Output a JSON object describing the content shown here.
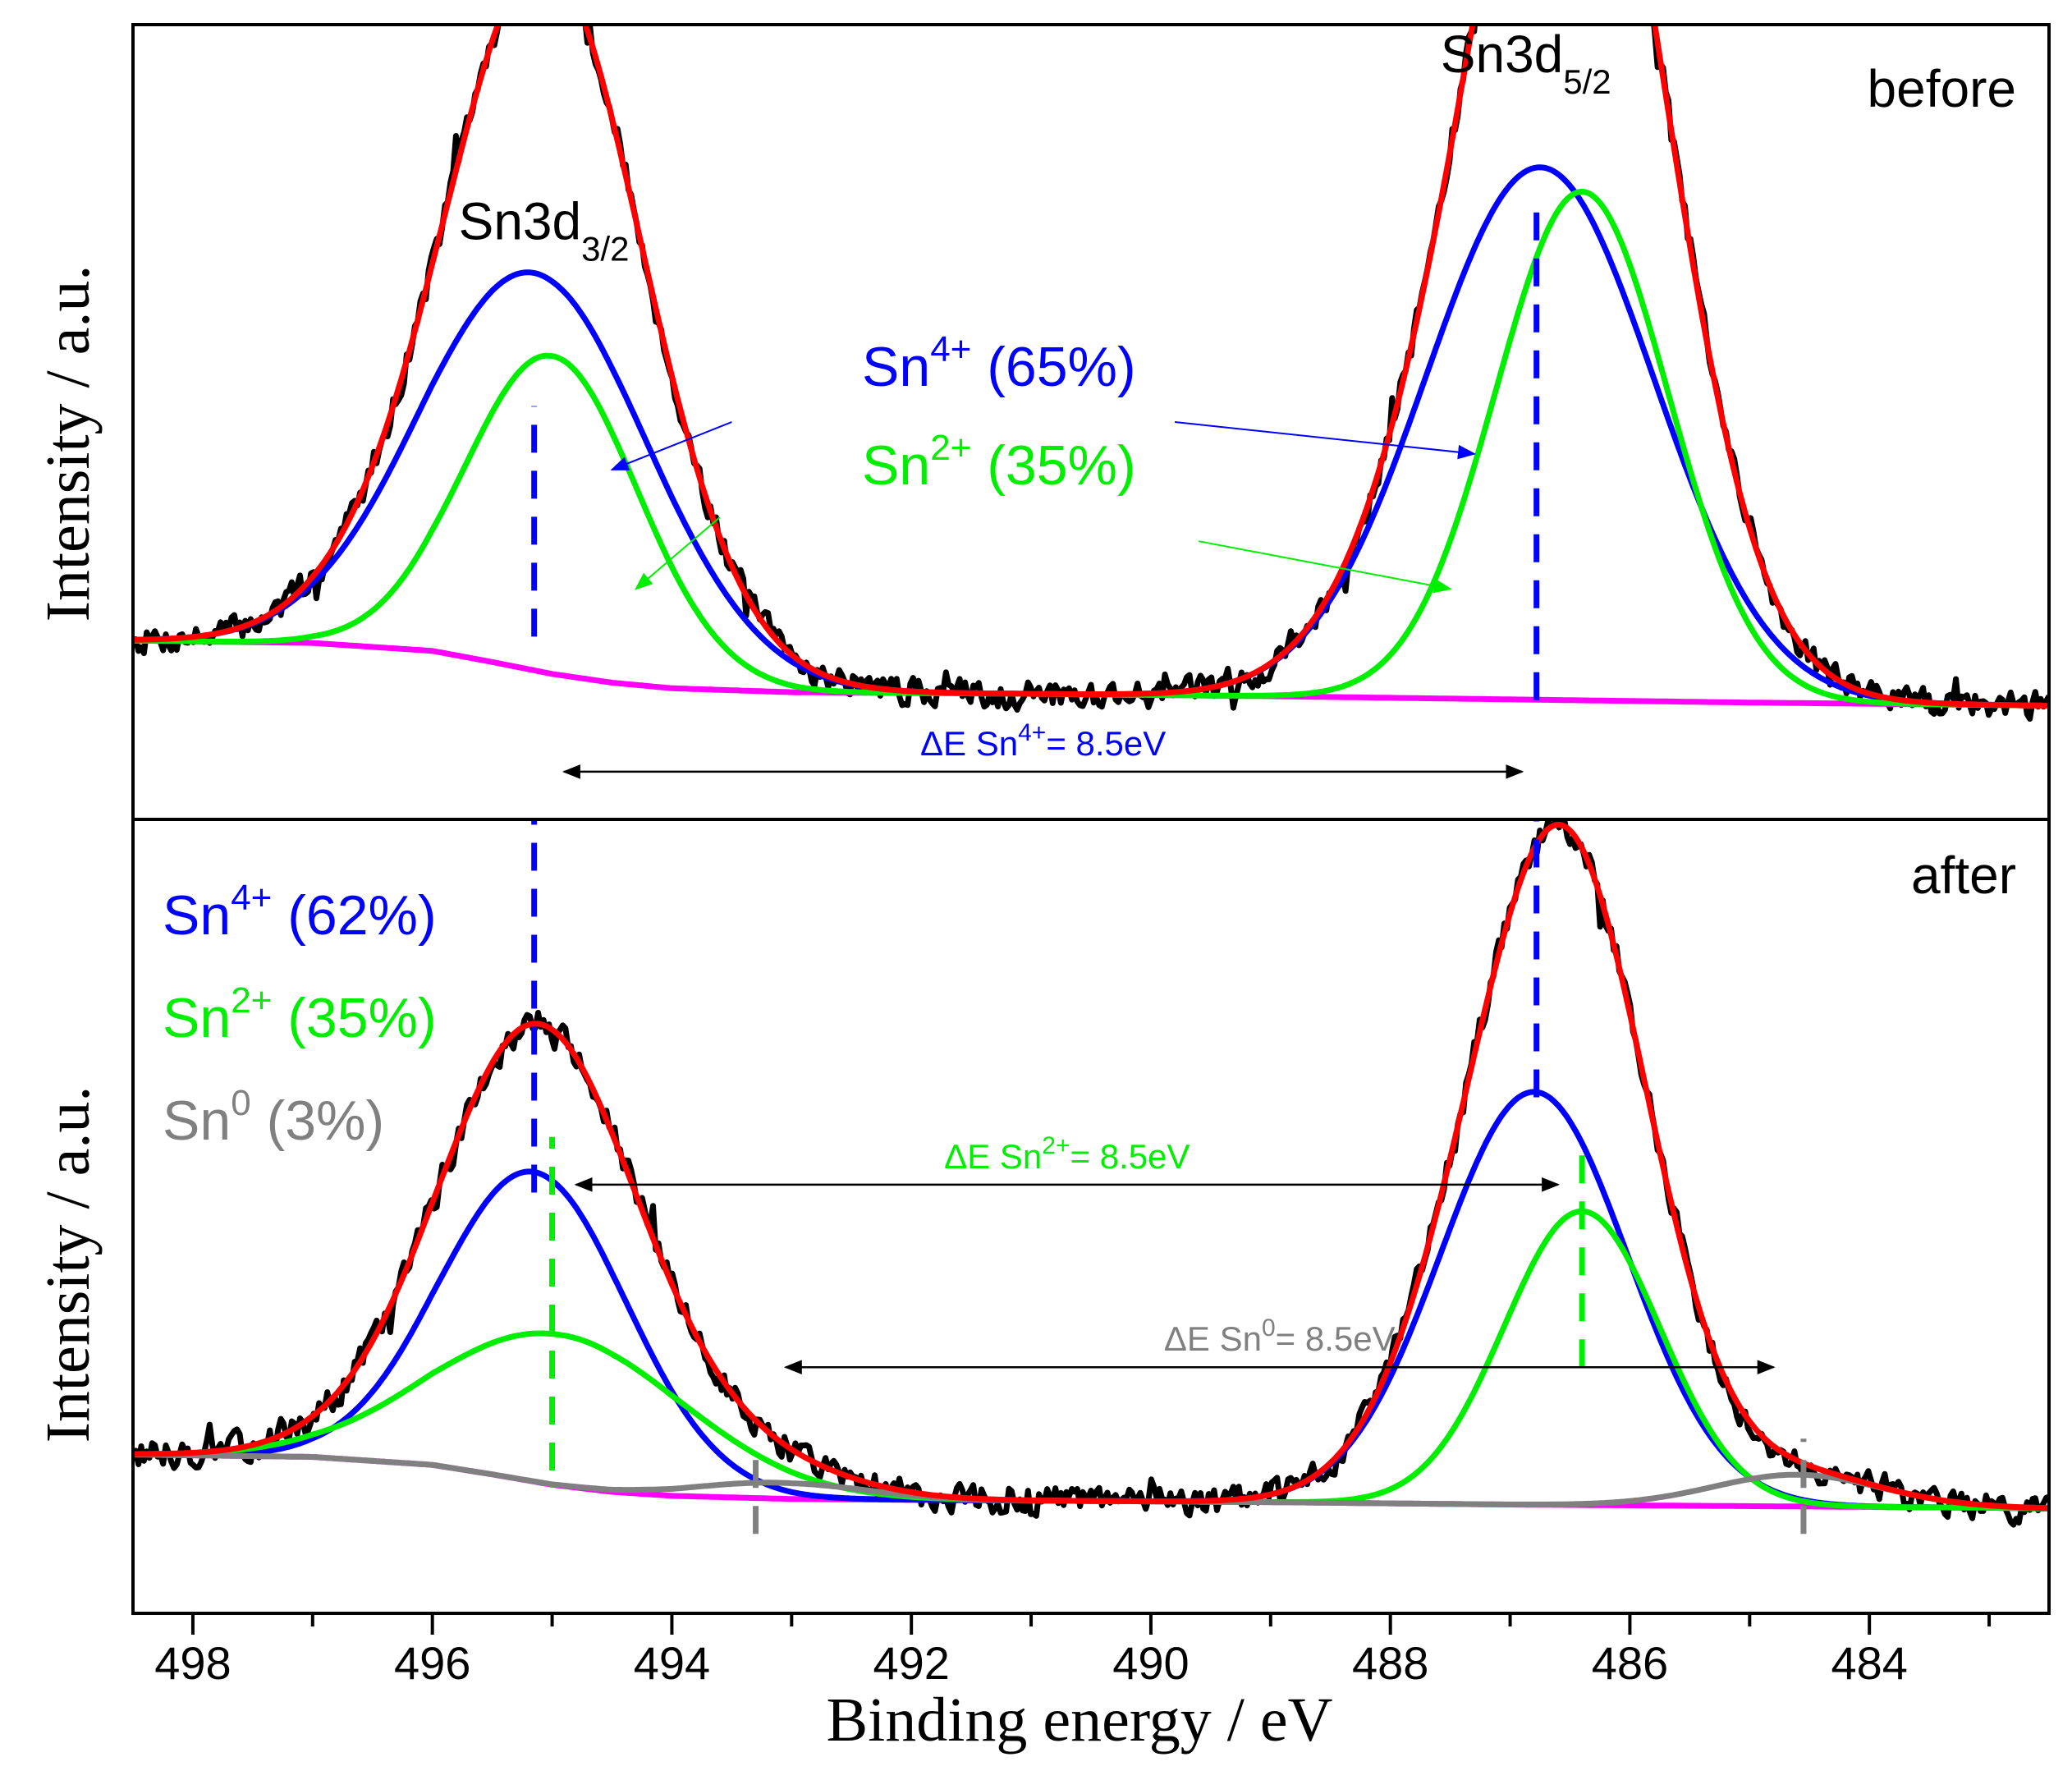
{
  "chart_data": {
    "type": "line",
    "xlabel": "Binding energy / eV",
    "ylabel": "Intensity / a.u.",
    "xlim": [
      498.5,
      482.5
    ],
    "x_ticks": [
      498,
      496,
      494,
      492,
      490,
      488,
      486,
      484
    ],
    "panels": [
      {
        "id": "before",
        "label": "before",
        "ylim": [
          0,
          100
        ],
        "peak_labels": [
          {
            "main": "Sn3d",
            "sub": "3/2",
            "x": 495.0,
            "y": 73
          },
          {
            "main": "Sn3d",
            "sub": "5/2",
            "x": 486.8,
            "y": 94
          }
        ],
        "components": [
          {
            "name": "Sn4+",
            "main": "Sn",
            "sup": "4+",
            "pct": "(65%)",
            "color": "#0000ff"
          },
          {
            "name": "Sn2+",
            "main": "Sn",
            "sup": "2+",
            "pct": "(35%)",
            "color": "#00ee00"
          }
        ],
        "series": [
          {
            "name": "background",
            "color": "#ff00ff",
            "x": [
              498.5,
              497,
              496,
              495.5,
              495,
              494.5,
              494,
              493,
              491,
              489,
              487,
              485,
              483,
              482.5
            ],
            "y": [
              22.5,
              22.2,
              21.2,
              19.8,
              18.3,
              17.2,
              16.5,
              16.0,
              15.8,
              15.5,
              15.1,
              14.7,
              14.4,
              14.3
            ]
          },
          {
            "name": "Sn4+ component",
            "color": "#0000ff",
            "peaks": [
              {
                "center": 495.15,
                "height": 50.0,
                "sigma": 0.95
              },
              {
                "center": 486.75,
                "height": 67.0,
                "sigma": 0.95
              }
            ]
          },
          {
            "name": "Sn2+ component",
            "color": "#00ee00",
            "peaks": [
              {
                "center": 495.0,
                "height": 40.0,
                "sigma": 0.72
              },
              {
                "center": 486.4,
                "height": 64.0,
                "sigma": 0.72
              }
            ]
          },
          {
            "name": "envelope fit",
            "color": "#ff0000"
          },
          {
            "name": "experimental",
            "color": "#000000"
          }
        ],
        "dashed_lines": [
          {
            "x": 495.15,
            "color": "#0000ff",
            "y": [
              23,
              52
            ]
          },
          {
            "x": 486.78,
            "color": "#0000ff",
            "y": [
              15,
              78
            ]
          }
        ],
        "arrows": [
          {
            "label_main": "ΔE Sn",
            "label_sup": "4+",
            "label_tail": "= 8.5eV",
            "color": "#0000ff",
            "arrow_color": "#000000",
            "x1": 494.9,
            "x2": 486.9,
            "y": 6
          }
        ],
        "annotation_pointers": [
          {
            "color": "#0000ff",
            "from": [
              493.5,
              50
            ],
            "to": [
              494.5,
              44
            ]
          },
          {
            "color": "#0000ff",
            "from": [
              489.8,
              50
            ],
            "to": [
              487.3,
              46
            ]
          },
          {
            "color": "#00ee00",
            "from": [
              493.6,
              38
            ],
            "to": [
              494.3,
              29
            ]
          },
          {
            "color": "#00ee00",
            "from": [
              489.6,
              35
            ],
            "to": [
              487.5,
              29
            ]
          }
        ],
        "noise_seed": 7
      },
      {
        "id": "after",
        "label": "after",
        "ylim": [
          0,
          100
        ],
        "components": [
          {
            "name": "Sn4+",
            "main": "Sn",
            "sup": "4+",
            "pct": "(62%)",
            "color": "#0000ff"
          },
          {
            "name": "Sn2+",
            "main": "Sn",
            "sup": "2+",
            "pct": "(35%)",
            "color": "#00ee00"
          },
          {
            "name": "Sn0",
            "main": "Sn",
            "sup": "0",
            "pct": "(3%)",
            "color": "#808080"
          }
        ],
        "series": [
          {
            "name": "background",
            "color": "#ff00ff",
            "x": [
              498.5,
              497,
              496,
              495.5,
              495,
              494.5,
              494,
              493,
              491,
              489,
              487,
              485,
              483,
              482.5
            ],
            "y": [
              20.0,
              19.7,
              18.7,
              17.5,
              16.2,
              15.3,
              14.8,
              14.4,
              14.2,
              14.0,
              13.7,
              13.5,
              13.3,
              13.2
            ]
          },
          {
            "name": "Sn4+ component",
            "color": "#0000ff",
            "peaks": [
              {
                "center": 495.15,
                "height": 39.0,
                "sigma": 0.78
              },
              {
                "center": 486.8,
                "height": 52.0,
                "sigma": 0.78
              }
            ]
          },
          {
            "name": "Sn2+ component",
            "color": "#00ee00",
            "peaks": [
              {
                "center": 494.95,
                "height": 19.0,
                "sigma": 1.05
              },
              {
                "center": 486.4,
                "height": 37.0,
                "sigma": 0.65
              }
            ]
          },
          {
            "name": "Sn0 component",
            "color": "#808080",
            "peaks": [
              {
                "center": 493.1,
                "height": 2.0,
                "sigma": 0.7
              },
              {
                "center": 484.6,
                "height": 4.0,
                "sigma": 0.7
              }
            ]
          },
          {
            "name": "envelope fit",
            "color": "#ff0000"
          },
          {
            "name": "experimental",
            "color": "#000000"
          }
        ],
        "dashed_lines": [
          {
            "x": 495.15,
            "color": "#0000ff",
            "y": [
              53,
              100
            ]
          },
          {
            "x": 486.78,
            "color": "#0000ff",
            "y": [
              65,
              100
            ]
          },
          {
            "x": 495.0,
            "color": "#00ee00",
            "y": [
              18,
              60
            ]
          },
          {
            "x": 486.4,
            "color": "#00ee00",
            "y": [
              31,
              58
            ]
          },
          {
            "x": 493.3,
            "color": "#808080",
            "y": [
              10,
              21
            ]
          },
          {
            "x": 484.55,
            "color": "#808080",
            "y": [
              10,
              22
            ]
          }
        ],
        "arrows": [
          {
            "label_main": "ΔE Sn",
            "label_sup": "2+",
            "label_tail": "= 8.5eV",
            "color": "#00ee00",
            "arrow_color": "#000000",
            "x1": 494.8,
            "x2": 486.6,
            "y": 54
          },
          {
            "label_main": "ΔE Sn",
            "label_sup": "0",
            "label_tail": "= 8.5eV",
            "color": "#808080",
            "arrow_color": "#000000",
            "x1": 493.05,
            "x2": 484.8,
            "y": 31
          }
        ],
        "noise_seed": 13
      }
    ]
  }
}
